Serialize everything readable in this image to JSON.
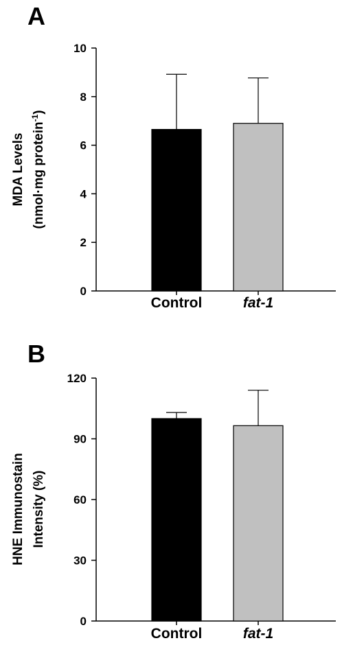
{
  "chart_data": [
    {
      "type": "bar",
      "panel": "A",
      "ylabel_line1": "MDA Levels",
      "ylabel_line2_pre": "(nmol·mg protein",
      "ylabel_line2_sup": "-1",
      "ylabel_line2_post": ")",
      "ylim": [
        0,
        10
      ],
      "yticks": [
        0,
        2,
        4,
        6,
        8,
        10
      ],
      "categories": [
        "Control",
        "fat-1"
      ],
      "category_italic": [
        false,
        true
      ],
      "values": [
        6.65,
        6.9
      ],
      "errors": [
        2.27,
        1.87
      ],
      "bar_colors": [
        "#000000",
        "#c0c0c0"
      ],
      "grid": false
    },
    {
      "type": "bar",
      "panel": "B",
      "ylabel_line1": "HNE Immunostain",
      "ylabel_line2_pre": "Intensity (%)",
      "ylabel_line2_sup": "",
      "ylabel_line2_post": "",
      "ylim": [
        0,
        120
      ],
      "yticks": [
        0,
        30,
        60,
        90,
        120
      ],
      "categories": [
        "Control",
        "fat-1"
      ],
      "category_italic": [
        false,
        true
      ],
      "values": [
        100,
        96.5
      ],
      "errors": [
        3,
        17.5
      ],
      "bar_colors": [
        "#000000",
        "#c0c0c0"
      ],
      "grid": false
    }
  ]
}
